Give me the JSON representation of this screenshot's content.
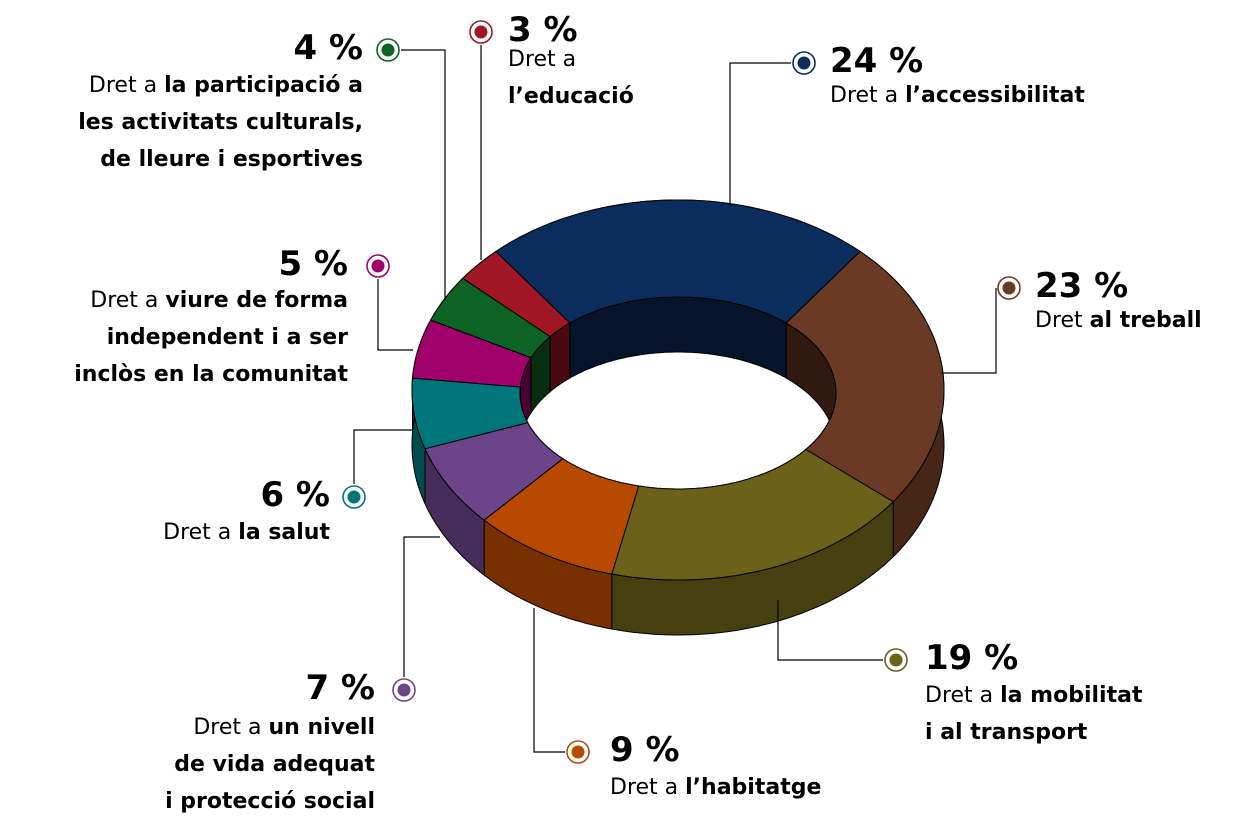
{
  "chart_data": {
    "type": "donut3d",
    "values": [
      24,
      23,
      19,
      9,
      7,
      6,
      5,
      4,
      3
    ],
    "value_labels": [
      "24 %",
      "23 %",
      "19 %",
      "9 %",
      "7 %",
      "6 %",
      "5 %",
      "4 %",
      "3 %"
    ],
    "colors": [
      "#0a2d5e",
      "#6b3a24",
      "#6b6118",
      "#b84a00",
      "#6b4489",
      "#00767a",
      "#a0006a",
      "#0d6324",
      "#a01624"
    ],
    "labels": [
      {
        "prefix": "Dret a",
        "text": [
          "l’accessibilitat"
        ]
      },
      {
        "prefix": "Dret",
        "text": [
          "al treball"
        ]
      },
      {
        "prefix": "Dret a",
        "text": [
          "la mobilitat",
          "i al transport"
        ]
      },
      {
        "prefix": "Dret a",
        "text": [
          "l’habitatge"
        ]
      },
      {
        "prefix": "Dret a",
        "text": [
          "un nivell",
          "de vida adequat",
          "i protecció social"
        ]
      },
      {
        "prefix": "Dret a",
        "text": [
          "la salut"
        ]
      },
      {
        "prefix": "Dret a",
        "text": [
          "viure de forma",
          "independent i a ser",
          "inclòs en la comunitat"
        ]
      },
      {
        "prefix": "Dret a",
        "text": [
          "la participació a",
          "les activitats culturals,",
          "de lleure i esportives"
        ]
      },
      {
        "prefix": "Dret a",
        "text": [
          "l’educació"
        ]
      }
    ]
  }
}
